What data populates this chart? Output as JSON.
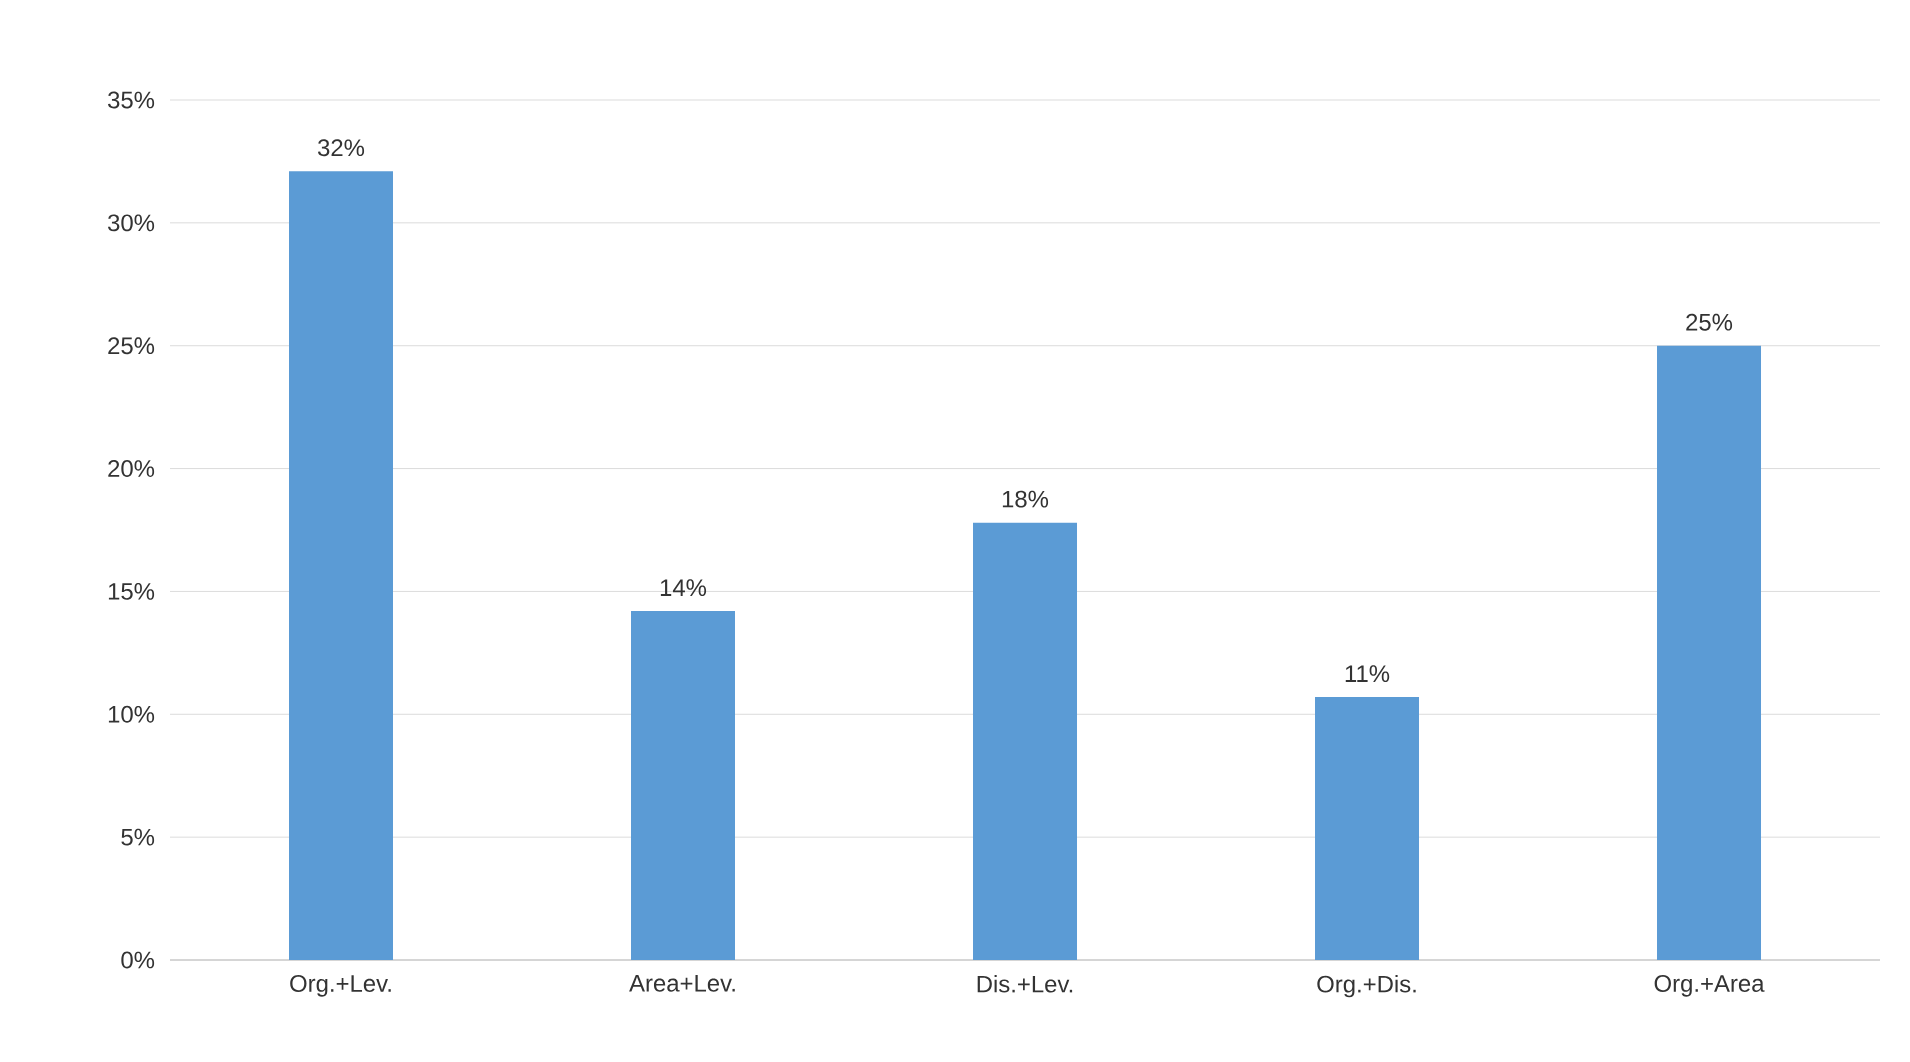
{
  "chart_data": {
    "type": "bar",
    "categories": [
      "Org.+Lev.",
      "Area+Lev.",
      "Dis.+Lev.",
      "Org.+Dis.",
      "Org.+Area"
    ],
    "values": [
      32.1,
      14.2,
      17.8,
      10.7,
      25.0
    ],
    "value_labels": [
      "32%",
      "14%",
      "18%",
      "11%",
      "25%"
    ],
    "color": "#5b9bd5",
    "ylim": [
      0,
      35
    ],
    "yticks": [
      {
        "value": 0,
        "label": "0%"
      },
      {
        "value": 5,
        "label": "5%"
      },
      {
        "value": 10,
        "label": "10%"
      },
      {
        "value": 15,
        "label": "15%"
      },
      {
        "value": 20,
        "label": "20%"
      },
      {
        "value": 25,
        "label": "25%"
      },
      {
        "value": 30,
        "label": "30%"
      },
      {
        "value": 35,
        "label": "35%"
      }
    ],
    "grid": "y"
  }
}
